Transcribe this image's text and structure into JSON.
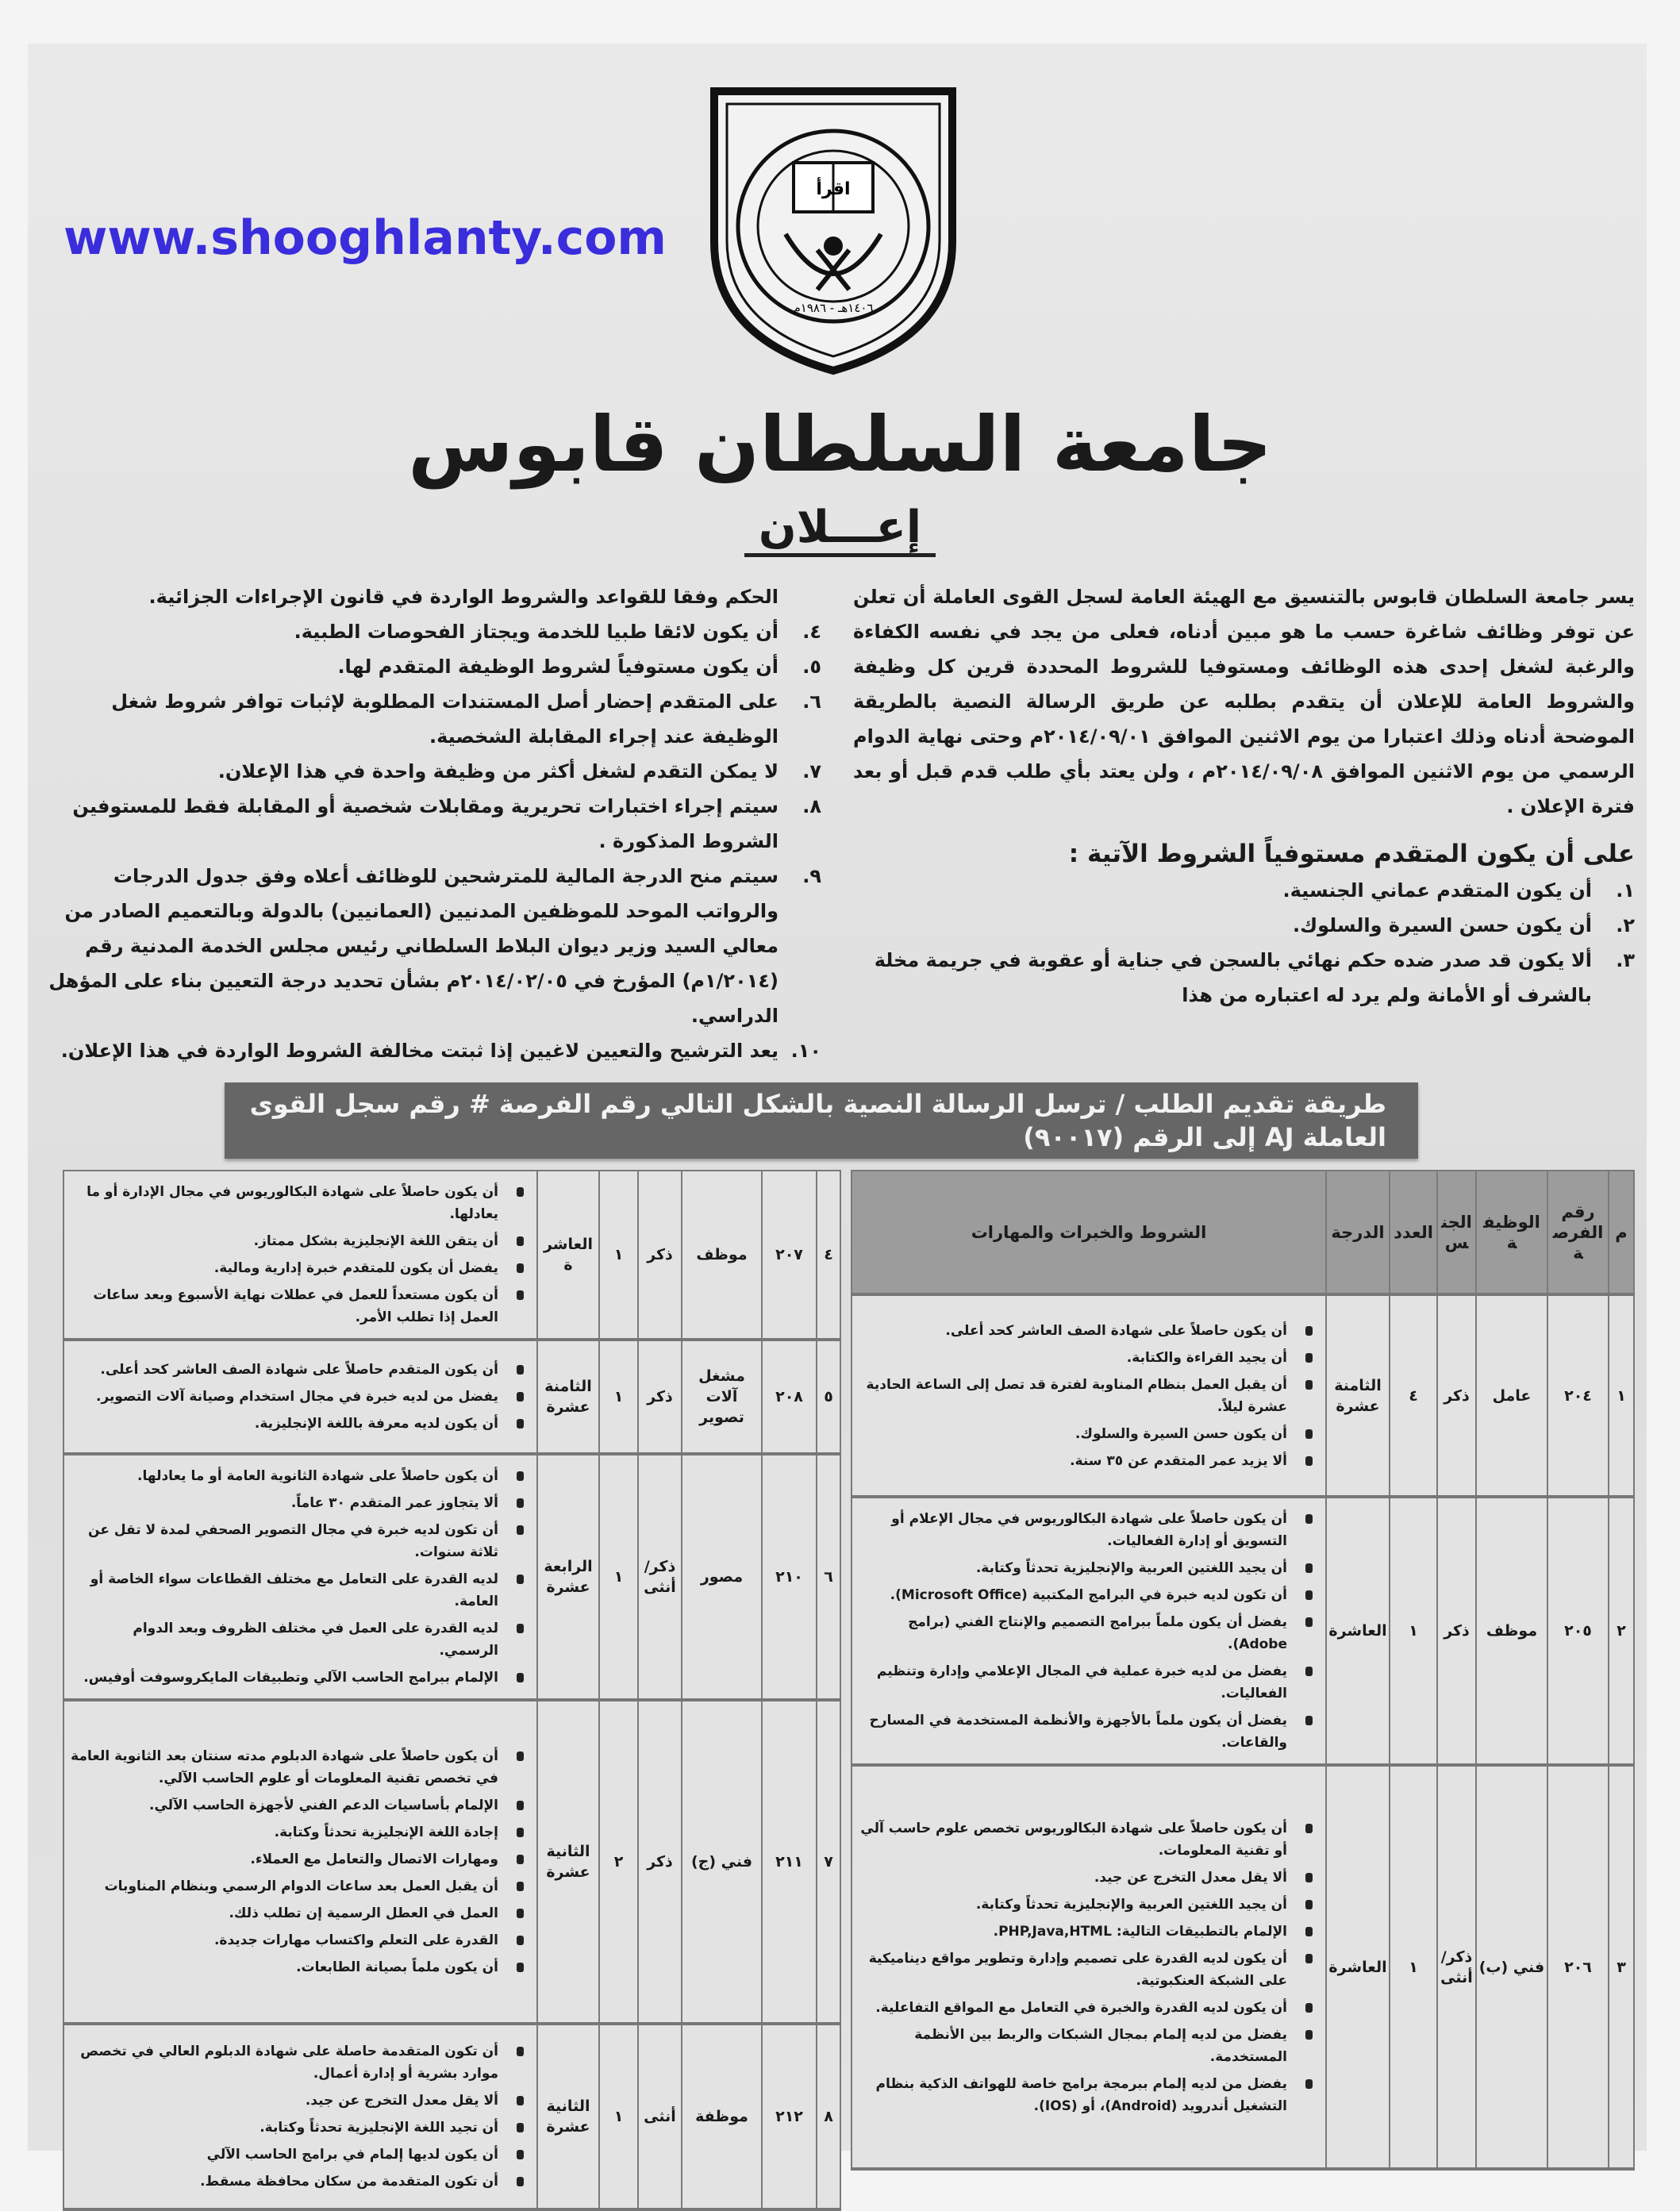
{
  "logo": {
    "ring_text": "جامعة السلطان قابوس",
    "book_text": "اقرأ",
    "date_text": "١٤٠٦هـ - ١٩٨٦م"
  },
  "header": {
    "title": "جامعة السلطان قابوس",
    "subtitle": "إعـــلان"
  },
  "intro": "يسر جامعة السلطان قابوس بالتنسيق مع الهيئة العامة لسجل القوى العاملة أن تعلن عن توفر وظائف شاغرة حسب ما هو مبين أدناه، فعلى من يجد في نفسه الكفاءة والرغبة لشغل إحدى هذه الوظائف ومستوفيا للشروط المحددة قرين كل وظيفة والشروط العامة للإعلان أن يتقدم بطلبه عن طريق الرسالة النصية بالطريقة الموضحة أدناه وذلك اعتبارا من يوم الاثنين الموافق ٢٠١٤/٠٩/٠١م وحتى نهاية الدوام الرسمي من يوم الاثنين الموافق ٢٠١٤/٠٩/٠٨م ، ولن يعتد بأي طلب قدم قبل أو بعد فترة الإعلان .",
  "conditions_heading": "على أن يكون المتقدم مستوفياً الشروط الآتية :",
  "conditions_right": [
    {
      "num": "١.",
      "text": "أن يكون المتقدم عماني الجنسية."
    },
    {
      "num": "٢.",
      "text": "أن يكون حسن السيرة والسلوك."
    },
    {
      "num": "٣.",
      "text": "ألا يكون قد صدر ضده حكم نهائي بالسجن في جناية أو عقوبة في جريمة مخلة بالشرف أو الأمانة ولم يرد له اعتباره من هذا"
    }
  ],
  "conditions_left": [
    {
      "num": "",
      "text": "الحكم وفقا للقواعد والشروط الواردة في قانون الإجراءات الجزائية."
    },
    {
      "num": "٤.",
      "text": "أن يكون لائقا طبيا للخدمة ويجتاز الفحوصات الطبية."
    },
    {
      "num": "٥.",
      "text": "أن يكون مستوفياً لشروط الوظيفة المتقدم لها."
    },
    {
      "num": "٦.",
      "text": "على المتقدم إحضار أصل المستندات المطلوبة لإثبات توافر شروط شغل الوظيفة عند إجراء المقابلة الشخصية."
    },
    {
      "num": "٧.",
      "text": "لا يمكن التقدم لشغل أكثر من وظيفة واحدة في هذا الإعلان."
    },
    {
      "num": "٨.",
      "text": "سيتم إجراء اختبارات تحريرية ومقابلات شخصية أو المقابلة فقط للمستوفين الشروط المذكورة ."
    },
    {
      "num": "٩.",
      "text": "سيتم منح الدرجة المالية للمترشحين للوظائف أعلاه وفق جدول الدرجات والرواتب الموحد للموظفين المدنيين (العمانيين) بالدولة وبالتعميم الصادر من معالي السيد وزير ديوان البلاط السلطاني رئيس مجلس الخدمة المدنية رقم (١/٢٠١٤م) المؤرخ في ٢٠١٤/٠٢/٠٥م بشأن تحديد درجة التعيين بناء على المؤهل الدراسي."
    },
    {
      "num": "١٠.",
      "text": "يعد الترشيح والتعيين لاغيين إذا ثبتت مخالفة الشروط الواردة في هذا الإعلان."
    }
  ],
  "banner": "طريقة تقديم الطلب /   ترسل الرسالة النصية بالشكل التالي رقم الفرصة # رقم سجل القوى العاملة AJ   إلى الرقم (٩٠٠١٧)",
  "table_headers": [
    "م",
    "رقم الفرصة",
    "الوظيفة",
    "الجنس",
    "العدد",
    "الدرجة",
    "الشروط والخبرات والمهارات"
  ],
  "jobs_right": [
    {
      "no": "١",
      "opportunity": "٢٠٤",
      "job": "عامل",
      "gender": "ذكر",
      "count": "٤",
      "grade": "الثامنة عشرة",
      "conditions": [
        "أن يكون حاصلاً على شهادة الصف العاشر كحد أعلى.",
        "أن يجيد القراءة والكتابة.",
        "أن يقبل العمل بنظام المناوبة لفترة قد تصل إلى الساعة الحادية عشرة ليلاً.",
        "أن يكون حسن السيرة والسلوك.",
        "ألا يزيد عمر المتقدم عن ٣٥ سنة."
      ]
    },
    {
      "no": "٢",
      "opportunity": "٢٠٥",
      "job": "موظف",
      "gender": "ذكر",
      "count": "١",
      "grade": "العاشرة",
      "conditions": [
        "أن يكون حاصلاً على شهادة البكالوريوس في مجال الإعلام أو التسويق أو إدارة الفعاليات.",
        "أن يجيد اللغتين العربية والإنجليزية تحدثاً وكتابة.",
        "أن تكون لديه خبرة في البرامج المكتبية (Microsoft Office).",
        "يفضل أن يكون ملماً ببرامج التصميم والإنتاج الفني (برامج Adobe).",
        "يفضل من لديه خبرة عملية في المجال الإعلامي وإدارة وتنظيم الفعاليات.",
        "يفضل أن يكون ملماً بالأجهزة والأنظمة المستخدمة في المسارح والقاعات."
      ]
    },
    {
      "no": "٣",
      "opportunity": "٢٠٦",
      "job": "فني (ب)",
      "gender": "ذكر/ أنثى",
      "count": "١",
      "grade": "العاشرة",
      "conditions": [
        "أن يكون حاصلاً على شهادة البكالوريوس تخصص علوم حاسب آلي أو تقنية المعلومات.",
        "ألا يقل معدل التخرج عن جيد.",
        "أن يجيد اللغتين العربية والإنجليزية تحدثاً وكتابة.",
        "الإلمام بالتطبيقات التالية: PHP,Java,HTML.",
        "أن يكون لديه القدرة على تصميم وإدارة وتطوير مواقع ديناميكية على الشبكة العنكبوتية.",
        "أن يكون لديه القدرة والخبرة في التعامل مع المواقع التفاعلية.",
        "يفضل من لديه إلمام بمجال الشبكات والربط بين الأنظمة المستخدمة.",
        "يفضل من لديه إلمام ببرمجة برامج خاصة للهواتف الذكية بنظام التشغيل أندرويد (Android)، أو (IOS)."
      ]
    }
  ],
  "jobs_left": [
    {
      "no": "٤",
      "opportunity": "٢٠٧",
      "job": "موظف",
      "gender": "ذكر",
      "count": "١",
      "grade": "العاشرة",
      "conditions": [
        "أن يكون حاصلاً على شهادة البكالوريوس في مجال الإدارة أو ما يعادلها.",
        "أن يتقن اللغة الإنجليزية بشكل ممتاز.",
        "يفضل أن يكون للمتقدم خبرة إدارية ومالية.",
        "أن يكون مستعداً للعمل في عطلات نهاية الأسبوع وبعد ساعات العمل إذا تطلب الأمر."
      ]
    },
    {
      "no": "٥",
      "opportunity": "٢٠٨",
      "job": "مشغل آلات تصوير",
      "gender": "ذكر",
      "count": "١",
      "grade": "الثامنة عشرة",
      "conditions": [
        "أن يكون المتقدم حاصلاً على شهادة الصف العاشر كحد أعلى.",
        "يفضل من لديه خبرة في مجال استخدام وصيانة آلات التصوير.",
        "أن يكون لديه معرفة باللغة الإنجليزية."
      ]
    },
    {
      "no": "٦",
      "opportunity": "٢١٠",
      "job": "مصور",
      "gender": "ذكر/ أنثى",
      "count": "١",
      "grade": "الرابعة عشرة",
      "conditions": [
        "أن يكون حاصلاً على شهادة الثانوية العامة أو ما يعادلها.",
        "ألا يتجاوز عمر المتقدم ٣٠ عاماً.",
        "أن تكون لديه خبرة في مجال التصوير الصحفي لمدة لا تقل عن ثلاثة سنوات.",
        "لديه القدرة على التعامل مع مختلف القطاعات سواء الخاصة أو العامة.",
        "لديه القدرة على العمل في مختلف الظروف وبعد الدوام الرسمي.",
        "الإلمام ببرامج الحاسب الآلي وتطبيقات المايكروسوفت أوفيس."
      ]
    },
    {
      "no": "٧",
      "opportunity": "٢١١",
      "job": "فني (ج)",
      "gender": "ذكر",
      "count": "٢",
      "grade": "الثانية عشرة",
      "conditions": [
        "أن يكون حاصلاً على شهادة الدبلوم مدته سنتان بعد الثانوية العامة في تخصص تقنية المعلومات أو علوم الحاسب الآلي.",
        "الإلمام بأساسيات الدعم الفني لأجهزة الحاسب الآلي.",
        "إجادة اللغة الإنجليزية تحدثاً وكتابة.",
        "ومهارات الاتصال والتعامل مع العملاء.",
        "أن يقبل العمل بعد ساعات الدوام الرسمي وبنظام المناوبات",
        "العمل في العطل الرسمية إن تطلب ذلك.",
        "القدرة على التعلم واكتساب مهارات جديدة.",
        "أن يكون ملماً بصيانة الطابعات."
      ]
    },
    {
      "no": "٨",
      "opportunity": "٢١٢",
      "job": "موظفة",
      "gender": "أنثى",
      "count": "١",
      "grade": "الثانية عشرة",
      "conditions": [
        "أن تكون المتقدمة حاصلة على شهادة الدبلوم العالي في تخصص موارد بشرية أو إدارة أعمال.",
        "ألا يقل معدل التخرج عن جيد.",
        "أن تجيد اللغة الإنجليزية تحدثاً وكتابة.",
        "أن يكون لديها إلمام في برامج الحاسب الآلي",
        "أن تكون المتقدمة من سكان محافظة مسقط."
      ]
    }
  ],
  "watermark": "www.shooghlanty.com",
  "colors": {
    "banner": "#666666",
    "table_header": "#9c9c9c",
    "watermark": "#3a2ddc"
  }
}
